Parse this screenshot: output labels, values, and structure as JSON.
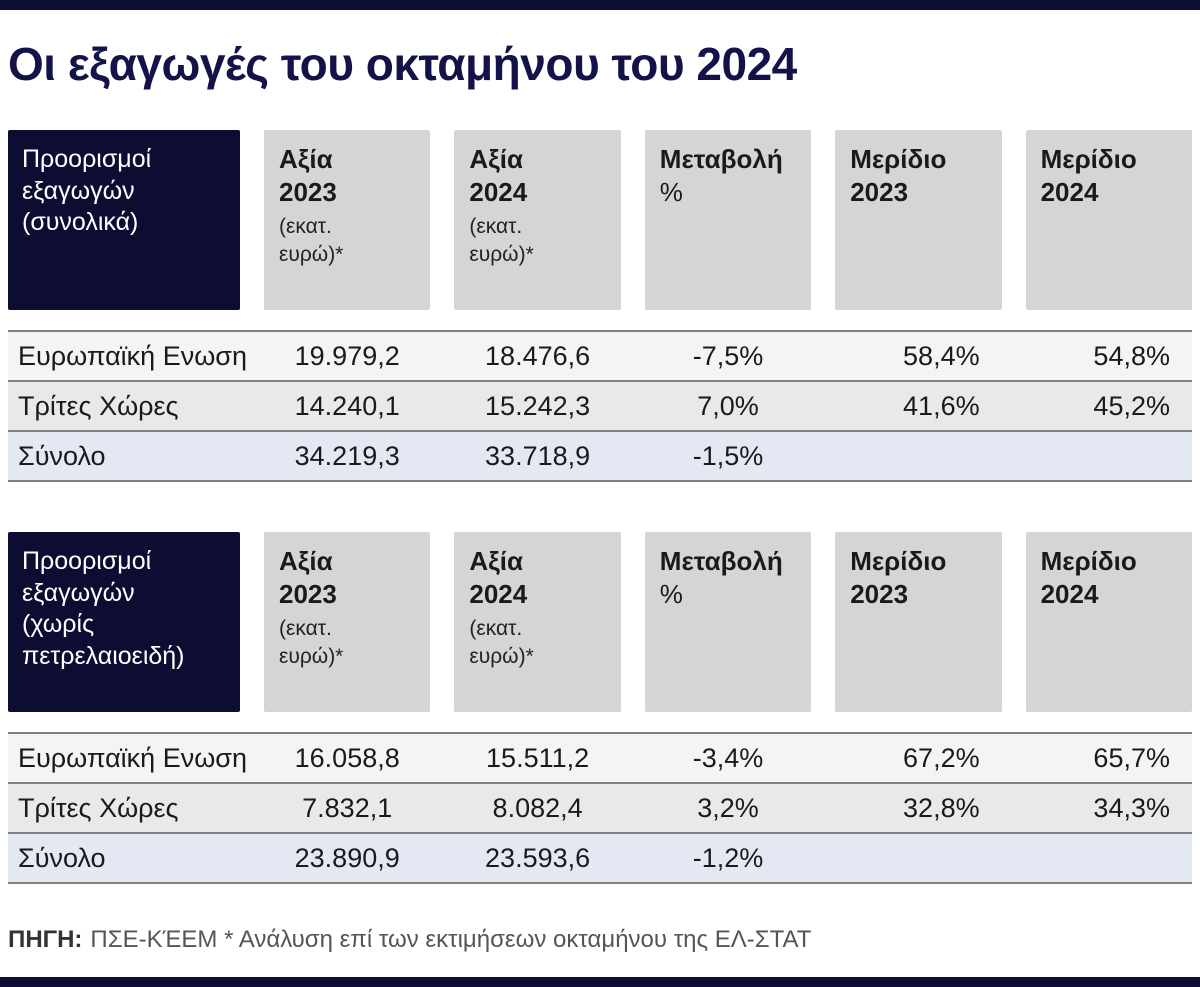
{
  "meta": {
    "title": "Οι εξαγωγές του οκταμήνου του 2024"
  },
  "colors": {
    "navy": "#0d0d33",
    "title_navy": "#131349",
    "header_gray": "#d5d5d5",
    "row_light": "#f4f4f4",
    "row_mid": "#e9e9e9",
    "total_row_blue": "#e3e8f3",
    "rule_gray": "#808080"
  },
  "columns": [
    {
      "m1": "Αξία",
      "m2": "2023",
      "s1": "(εκατ.",
      "s2": "ευρώ)*"
    },
    {
      "m1": "Αξία",
      "m2": "2024",
      "s1": "(εκατ.",
      "s2": "ευρώ)*"
    },
    {
      "m1": "Μεταβολή",
      "r1": "%"
    },
    {
      "m1": "Μερίδιο",
      "m2": "2023"
    },
    {
      "m1": "Μερίδιο",
      "m2": "2024"
    }
  ],
  "table_total": {
    "group_header_lines": [
      "Προορισμοί",
      "εξαγωγών",
      "(συνολικά)"
    ],
    "rows": [
      {
        "label": "Ευρωπαϊκή Ενωση",
        "value_2023": "19.979,2",
        "value_2024": "18.476,6",
        "change": "-7,5%",
        "share_2023": "58,4%",
        "share_2024": "54,8%"
      },
      {
        "label": "Τρίτες Χώρες",
        "value_2023": "14.240,1",
        "value_2024": "15.242,3",
        "change": "7,0%",
        "share_2023": "41,6%",
        "share_2024": "45,2%"
      },
      {
        "label": "Σύνολο",
        "value_2023": "34.219,3",
        "value_2024": "33.718,9",
        "change": "-1,5%",
        "share_2023": "",
        "share_2024": ""
      }
    ]
  },
  "table_excl_petroleum": {
    "group_header_lines": [
      "Προορισμοί",
      "εξαγωγών",
      "(χωρίς",
      "πετρελαιοειδή)"
    ],
    "rows": [
      {
        "label": "Ευρωπαϊκή Ενωση",
        "value_2023": "16.058,8",
        "value_2024": "15.511,2",
        "change": "-3,4%",
        "share_2023": "67,2%",
        "share_2024": "65,7%"
      },
      {
        "label": "Τρίτες Χώρες",
        "value_2023": "7.832,1",
        "value_2024": "8.082,4",
        "change": "3,2%",
        "share_2023": "32,8%",
        "share_2024": "34,3%"
      },
      {
        "label": "Σύνολο",
        "value_2023": "23.890,9",
        "value_2024": "23.593,6",
        "change": "-1,2%",
        "share_2023": "",
        "share_2024": ""
      }
    ]
  },
  "footer": {
    "source_label": "ΠΗΓΗ:",
    "source_text": "ΠΣΕ-ΚΈΕΜ * Ανάλυση επί των εκτιμήσεων οκταμήνου της ΕΛ-ΣΤΑΤ"
  },
  "chart_data": [
    {
      "type": "table",
      "title": "Προορισμοί εξαγωγών (συνολικά)",
      "columns": [
        "Αξία 2023 (εκατ. ευρώ)*",
        "Αξία 2024 (εκατ. ευρώ)*",
        "Μεταβολή %",
        "Μερίδιο 2023",
        "Μερίδιο 2024"
      ],
      "rows": [
        {
          "label": "Ευρωπαϊκή Ενωση",
          "values": [
            19979.2,
            18476.6,
            -7.5,
            58.4,
            54.8
          ]
        },
        {
          "label": "Τρίτες Χώρες",
          "values": [
            14240.1,
            15242.3,
            7.0,
            41.6,
            45.2
          ]
        },
        {
          "label": "Σύνολο",
          "values": [
            34219.3,
            33718.9,
            -1.5,
            null,
            null
          ]
        }
      ]
    },
    {
      "type": "table",
      "title": "Προορισμοί εξαγωγών (χωρίς πετρελαιοειδή)",
      "columns": [
        "Αξία 2023 (εκατ. ευρώ)*",
        "Αξία 2024 (εκατ. ευρώ)*",
        "Μεταβολή %",
        "Μερίδιο 2023",
        "Μερίδιο 2024"
      ],
      "rows": [
        {
          "label": "Ευρωπαϊκή Ενωση",
          "values": [
            16058.8,
            15511.2,
            -3.4,
            67.2,
            65.7
          ]
        },
        {
          "label": "Τρίτες Χώρες",
          "values": [
            7832.1,
            8082.4,
            3.2,
            32.8,
            34.3
          ]
        },
        {
          "label": "Σύνολο",
          "values": [
            23890.9,
            23593.6,
            -1.2,
            null,
            null
          ]
        }
      ]
    }
  ]
}
